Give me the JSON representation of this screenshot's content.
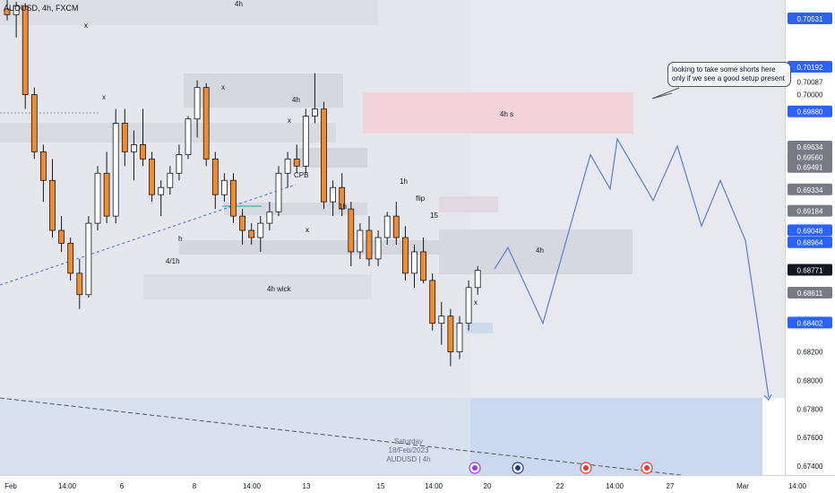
{
  "header": {
    "symbol_title": "AUDUSD, 4h, FXCM"
  },
  "price_axis": {
    "labels": [
      "0.70531",
      "0.70192",
      "0.70087",
      "0.70000",
      "0.69880",
      "0.69634",
      "0.69560",
      "0.69491",
      "0.69334",
      "0.69184",
      "0.69048",
      "0.68964",
      "0.68771",
      "0.68611",
      "0.68402",
      "0.68200",
      "0.68000",
      "0.67800",
      "0.67600",
      "0.67400"
    ],
    "highlighted": {
      "0.70531": "#2962ff",
      "0.70192": "#2962ff",
      "0.69880": "#2962ff",
      "0.69048": "#2962ff",
      "0.68964": "#2962ff",
      "0.68402": "#2962ff",
      "0.68771": "#131722",
      "0.69634": "#787b86",
      "0.69560": "#787b86",
      "0.69491": "#787b86",
      "0.69334": "#787b86",
      "0.69184": "#787b86",
      "0.68611": "#787b86"
    }
  },
  "time_axis": {
    "labels": [
      "Feb",
      "14:00",
      "6",
      "8",
      "14:00",
      "13",
      "15",
      "14:00",
      "20",
      "22",
      "14:00",
      "27",
      "Mar",
      "14:00"
    ]
  },
  "annotations": {
    "note": "looking to take some shorts here only if we see a good setup present",
    "zone_labels": [
      "4h",
      "4h",
      "4h s",
      "1h",
      "1h",
      "4h",
      "4h wick",
      "4/1h"
    ],
    "markers": [
      "x",
      "x",
      "x",
      "x",
      "x",
      "x",
      "CPB",
      "h",
      "15",
      "flip"
    ]
  },
  "watermark": {
    "line1": "Saturday",
    "line2": "18/Feb/2023",
    "line3": "AUDUSD | 4h"
  },
  "colors": {
    "bull": "#ffffff",
    "bear": "#ef8c2f",
    "wick": "#131722",
    "projection": "#5b7fd6",
    "trendline": "#3d6fd9"
  },
  "chart_data": {
    "type": "candlestick",
    "title": "AUDUSD, 4h, FXCM",
    "y_range": [
      0.6735,
      0.7065
    ],
    "candles": [
      {
        "o": 0.706,
        "h": 0.7068,
        "l": 0.7052,
        "c": 0.7056
      },
      {
        "o": 0.7056,
        "h": 0.7065,
        "l": 0.704,
        "c": 0.7062
      },
      {
        "o": 0.7062,
        "h": 0.7064,
        "l": 0.699,
        "c": 0.7
      },
      {
        "o": 0.7,
        "h": 0.7005,
        "l": 0.6955,
        "c": 0.696
      },
      {
        "o": 0.696,
        "h": 0.6965,
        "l": 0.6925,
        "c": 0.694
      },
      {
        "o": 0.694,
        "h": 0.6955,
        "l": 0.69,
        "c": 0.6905
      },
      {
        "o": 0.6905,
        "h": 0.6915,
        "l": 0.689,
        "c": 0.6896
      },
      {
        "o": 0.6896,
        "h": 0.69,
        "l": 0.687,
        "c": 0.6875
      },
      {
        "o": 0.6875,
        "h": 0.6885,
        "l": 0.685,
        "c": 0.686
      },
      {
        "o": 0.686,
        "h": 0.6915,
        "l": 0.6858,
        "c": 0.691
      },
      {
        "o": 0.691,
        "h": 0.695,
        "l": 0.6905,
        "c": 0.6945
      },
      {
        "o": 0.6945,
        "h": 0.696,
        "l": 0.691,
        "c": 0.6915
      },
      {
        "o": 0.6915,
        "h": 0.699,
        "l": 0.691,
        "c": 0.698
      },
      {
        "o": 0.698,
        "h": 0.699,
        "l": 0.695,
        "c": 0.696
      },
      {
        "o": 0.696,
        "h": 0.6975,
        "l": 0.694,
        "c": 0.6965
      },
      {
        "o": 0.6965,
        "h": 0.699,
        "l": 0.695,
        "c": 0.6955
      },
      {
        "o": 0.6955,
        "h": 0.696,
        "l": 0.6925,
        "c": 0.693
      },
      {
        "o": 0.693,
        "h": 0.694,
        "l": 0.6915,
        "c": 0.6935
      },
      {
        "o": 0.6935,
        "h": 0.695,
        "l": 0.693,
        "c": 0.6945
      },
      {
        "o": 0.6945,
        "h": 0.6965,
        "l": 0.694,
        "c": 0.6958
      },
      {
        "o": 0.6958,
        "h": 0.6985,
        "l": 0.6955,
        "c": 0.6983
      },
      {
        "o": 0.6983,
        "h": 0.701,
        "l": 0.697,
        "c": 0.7005
      },
      {
        "o": 0.7005,
        "h": 0.7008,
        "l": 0.695,
        "c": 0.6955
      },
      {
        "o": 0.6955,
        "h": 0.696,
        "l": 0.692,
        "c": 0.693
      },
      {
        "o": 0.693,
        "h": 0.6945,
        "l": 0.6925,
        "c": 0.694
      },
      {
        "o": 0.694,
        "h": 0.6945,
        "l": 0.691,
        "c": 0.6915
      },
      {
        "o": 0.6915,
        "h": 0.692,
        "l": 0.6895,
        "c": 0.6905
      },
      {
        "o": 0.6905,
        "h": 0.691,
        "l": 0.6895,
        "c": 0.69
      },
      {
        "o": 0.69,
        "h": 0.6915,
        "l": 0.689,
        "c": 0.691
      },
      {
        "o": 0.691,
        "h": 0.6925,
        "l": 0.6905,
        "c": 0.6918
      },
      {
        "o": 0.6918,
        "h": 0.695,
        "l": 0.6915,
        "c": 0.6945
      },
      {
        "o": 0.6945,
        "h": 0.696,
        "l": 0.6935,
        "c": 0.6955
      },
      {
        "o": 0.6955,
        "h": 0.6965,
        "l": 0.6945,
        "c": 0.695
      },
      {
        "o": 0.695,
        "h": 0.699,
        "l": 0.6945,
        "c": 0.6985
      },
      {
        "o": 0.6985,
        "h": 0.7015,
        "l": 0.698,
        "c": 0.699
      },
      {
        "o": 0.699,
        "h": 0.6995,
        "l": 0.692,
        "c": 0.6925
      },
      {
        "o": 0.6925,
        "h": 0.694,
        "l": 0.6915,
        "c": 0.6935
      },
      {
        "o": 0.6935,
        "h": 0.6945,
        "l": 0.6915,
        "c": 0.692
      },
      {
        "o": 0.692,
        "h": 0.6925,
        "l": 0.688,
        "c": 0.689
      },
      {
        "o": 0.689,
        "h": 0.691,
        "l": 0.6885,
        "c": 0.6905
      },
      {
        "o": 0.6905,
        "h": 0.6915,
        "l": 0.688,
        "c": 0.6885
      },
      {
        "o": 0.6885,
        "h": 0.6905,
        "l": 0.688,
        "c": 0.69
      },
      {
        "o": 0.69,
        "h": 0.6918,
        "l": 0.6895,
        "c": 0.6915
      },
      {
        "o": 0.6915,
        "h": 0.6925,
        "l": 0.6895,
        "c": 0.69
      },
      {
        "o": 0.69,
        "h": 0.6908,
        "l": 0.687,
        "c": 0.6875
      },
      {
        "o": 0.6875,
        "h": 0.6895,
        "l": 0.6865,
        "c": 0.689
      },
      {
        "o": 0.689,
        "h": 0.69,
        "l": 0.6868,
        "c": 0.687
      },
      {
        "o": 0.687,
        "h": 0.6875,
        "l": 0.6835,
        "c": 0.684
      },
      {
        "o": 0.684,
        "h": 0.6855,
        "l": 0.6825,
        "c": 0.6845
      },
      {
        "o": 0.6845,
        "h": 0.685,
        "l": 0.681,
        "c": 0.682
      },
      {
        "o": 0.682,
        "h": 0.6845,
        "l": 0.6815,
        "c": 0.684
      },
      {
        "o": 0.684,
        "h": 0.687,
        "l": 0.6835,
        "c": 0.6865
      },
      {
        "o": 0.6865,
        "h": 0.688,
        "l": 0.686,
        "c": 0.6877
      }
    ],
    "projection": [
      0.6878,
      0.6893,
      0.684,
      0.6958,
      0.6934,
      0.6969,
      0.6926,
      0.6964,
      0.6908,
      0.694,
      0.6898,
      0.6788
    ],
    "support_zones": [
      "4h",
      "4h",
      "4h",
      "1h",
      "4h wick",
      "4/1h"
    ],
    "resistance_zones": [
      "4h s"
    ]
  }
}
